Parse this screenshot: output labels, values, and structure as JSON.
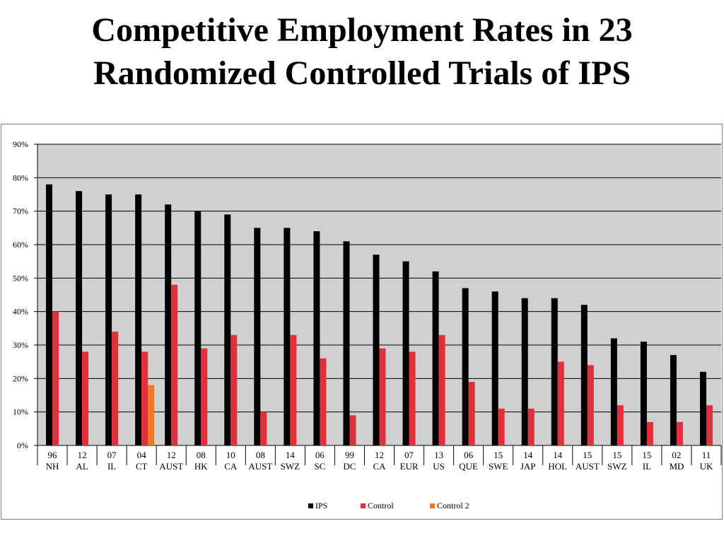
{
  "slide": {
    "title_line1": "Competitive Employment Rates in 23",
    "title_line2": "Randomized Controlled Trials of IPS"
  },
  "colors": {
    "ips": "#000000",
    "control": "#e0303a",
    "control2": "#f07820",
    "plot_bg": "#d0d0d0",
    "gridline": "#000000"
  },
  "chart_data": {
    "type": "bar",
    "title": "Competitive Employment Rates in 23 Randomized Controlled Trials of IPS",
    "xlabel": "",
    "ylabel": "",
    "ylim": [
      0,
      90
    ],
    "yticks": [
      0,
      10,
      20,
      30,
      40,
      50,
      60,
      70,
      80,
      90
    ],
    "ytick_labels": [
      "0%",
      "10%",
      "20%",
      "30%",
      "40%",
      "50%",
      "60%",
      "70%",
      "80%",
      "90%"
    ],
    "grid": true,
    "legend_position": "bottom-center",
    "categories": [
      {
        "year": "96",
        "site": "NH"
      },
      {
        "year": "12",
        "site": "AL"
      },
      {
        "year": "07",
        "site": "IL"
      },
      {
        "year": "04",
        "site": "CT"
      },
      {
        "year": "12",
        "site": "AUST"
      },
      {
        "year": "08",
        "site": "HK"
      },
      {
        "year": "10",
        "site": "CA"
      },
      {
        "year": "08",
        "site": "AUST"
      },
      {
        "year": "14",
        "site": "SWZ"
      },
      {
        "year": "06",
        "site": "SC"
      },
      {
        "year": "99",
        "site": "DC"
      },
      {
        "year": "12",
        "site": "CA"
      },
      {
        "year": "07",
        "site": "EUR"
      },
      {
        "year": "13",
        "site": "US"
      },
      {
        "year": "06",
        "site": "QUE"
      },
      {
        "year": "15",
        "site": "SWE"
      },
      {
        "year": "14",
        "site": "JAP"
      },
      {
        "year": "14",
        "site": "HOL"
      },
      {
        "year": "15",
        "site": "AUST"
      },
      {
        "year": "15",
        "site": "SWZ"
      },
      {
        "year": "15",
        "site": "IL"
      },
      {
        "year": "02",
        "site": "MD"
      },
      {
        "year": "11",
        "site": "UK"
      }
    ],
    "series": [
      {
        "name": "IPS",
        "key": "ips",
        "values": [
          78,
          76,
          75,
          75,
          72,
          70,
          69,
          65,
          65,
          64,
          61,
          57,
          55,
          52,
          47,
          46,
          44,
          44,
          42,
          32,
          31,
          27,
          22
        ]
      },
      {
        "name": "Control",
        "key": "control",
        "values": [
          40,
          28,
          34,
          28,
          48,
          29,
          33,
          10,
          33,
          26,
          9,
          29,
          28,
          33,
          19,
          11,
          11,
          25,
          24,
          12,
          7,
          7,
          12
        ]
      },
      {
        "name": "Control 2",
        "key": "control2",
        "values": [
          null,
          null,
          null,
          18,
          null,
          null,
          null,
          null,
          null,
          null,
          null,
          null,
          null,
          null,
          null,
          null,
          null,
          null,
          null,
          null,
          null,
          null,
          null
        ]
      }
    ]
  }
}
